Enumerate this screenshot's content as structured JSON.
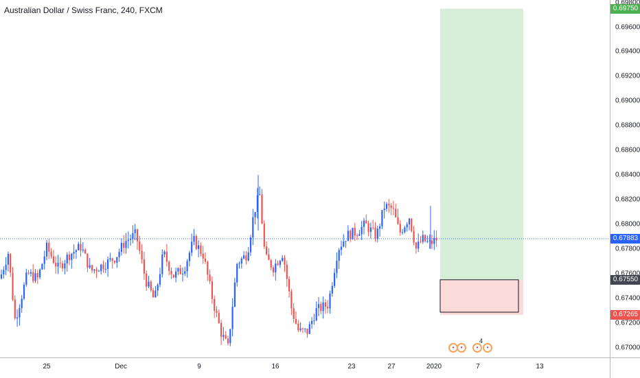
{
  "title": "Australian Dollar / Swiss Franc, 240, FXCM",
  "colors": {
    "up": "#2962ff",
    "down": "#ef5350",
    "current_line": "#2962ff",
    "target_zone": "#d6eed8",
    "stop_zone": "#fbdada"
  },
  "price_axis": {
    "ticks": [
      "0.69800",
      "0.69600",
      "0.69400",
      "0.69200",
      "0.69000",
      "0.68800",
      "0.68600",
      "0.68400",
      "0.68200",
      "0.68000",
      "0.67800",
      "0.67600",
      "0.67400",
      "0.67200",
      "0.67000"
    ],
    "tags": [
      {
        "label": "0.69750",
        "price": 0.6975,
        "color": "#4caf50"
      },
      {
        "label": "0.67883",
        "price": 0.67883,
        "color": "#2962ff"
      },
      {
        "label": "0.67550",
        "price": 0.6755,
        "color": "#434651"
      },
      {
        "label": "0.67265",
        "price": 0.67265,
        "color": "#ef5350"
      }
    ]
  },
  "time_axis": {
    "ticks": [
      {
        "label": "25"
      },
      {
        "label": "Dec"
      },
      {
        "label": "9"
      },
      {
        "label": "16"
      },
      {
        "label": "23"
      },
      {
        "label": "27"
      },
      {
        "label": "2020"
      },
      {
        "label": "7"
      },
      {
        "label": "13"
      }
    ]
  },
  "chart_data": {
    "type": "candlestick",
    "price_range": [
      0.6692,
      0.6982
    ],
    "current_price": 0.67883,
    "position": {
      "type": "long",
      "entry": 0.6755,
      "target": 0.6975,
      "stop": 0.67265
    },
    "events": [
      {
        "icon": "swiss-flag-icon"
      },
      {
        "icon": "australia-flag-icon"
      },
      {
        "icon": "canada-flag-icon",
        "count": "4"
      },
      {
        "icon": "australia-flag-icon"
      }
    ]
  }
}
